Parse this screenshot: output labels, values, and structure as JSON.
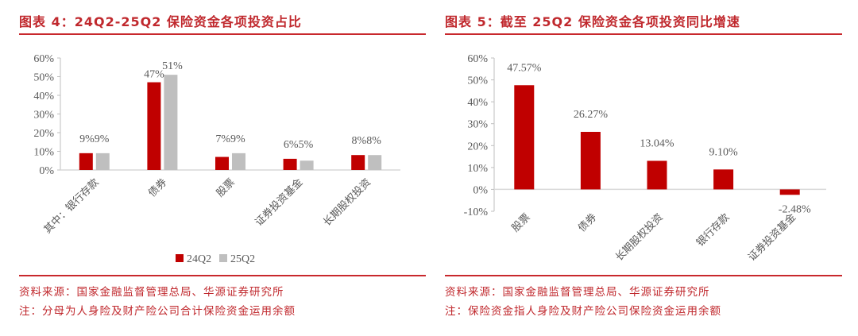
{
  "left": {
    "title": "图表 4：24Q2-25Q2 保险资金各项投资占比",
    "source": "资料来源：国家金融监督管理总局、华源证券研究所",
    "note": "注：分母为人身险及财产险公司合计保险资金运用余额"
  },
  "right": {
    "title": "图表 5：截至 25Q2 保险资金各项投资同比增速",
    "source": "资料来源：国家金融监督管理总局、华源证券研究所",
    "note": "注：保险资金指人身险及财产险公司保险资金运用余额"
  },
  "colors": {
    "accent": "#c00000",
    "gray": "#bfbfbf",
    "title_red": "#c0282d"
  },
  "chart_data": [
    {
      "type": "bar",
      "title": "图表 4：24Q2-25Q2 保险资金各项投资占比",
      "categories": [
        "其中：银行存款",
        "债券",
        "股票",
        "证券投资基金",
        "长期股权投资"
      ],
      "series": [
        {
          "name": "24Q2",
          "values": [
            9,
            47,
            7,
            6,
            8
          ],
          "labels": [
            "9%",
            "47%",
            "7%",
            "6%",
            "8%"
          ],
          "color": "#c00000"
        },
        {
          "name": "25Q2",
          "values": [
            9,
            51,
            9,
            5,
            8
          ],
          "labels": [
            "9%",
            "51%",
            "9%",
            "5%",
            "8%"
          ],
          "color": "#bfbfbf"
        }
      ],
      "yticks": [
        "0%",
        "10%",
        "20%",
        "30%",
        "40%",
        "50%",
        "60%"
      ],
      "ylim": [
        0,
        60
      ],
      "xlabel": "",
      "ylabel": "",
      "legend": [
        "24Q2",
        "25Q2"
      ],
      "legend_position": "bottom",
      "grid": false
    },
    {
      "type": "bar",
      "title": "图表 5：截至 25Q2 保险资金各项投资同比增速",
      "categories": [
        "股票",
        "债券",
        "长期股权投资",
        "银行存款",
        "证券投资基金"
      ],
      "values": [
        47.57,
        26.27,
        13.04,
        9.1,
        -2.48
      ],
      "labels": [
        "47.57%",
        "26.27%",
        "13.04%",
        "9.10%",
        "-2.48%"
      ],
      "yticks": [
        "-10%",
        "0%",
        "10%",
        "20%",
        "30%",
        "40%",
        "50%",
        "60%"
      ],
      "ylim": [
        -10,
        60
      ],
      "xlabel": "",
      "ylabel": "",
      "color": "#c00000",
      "grid": false
    }
  ]
}
